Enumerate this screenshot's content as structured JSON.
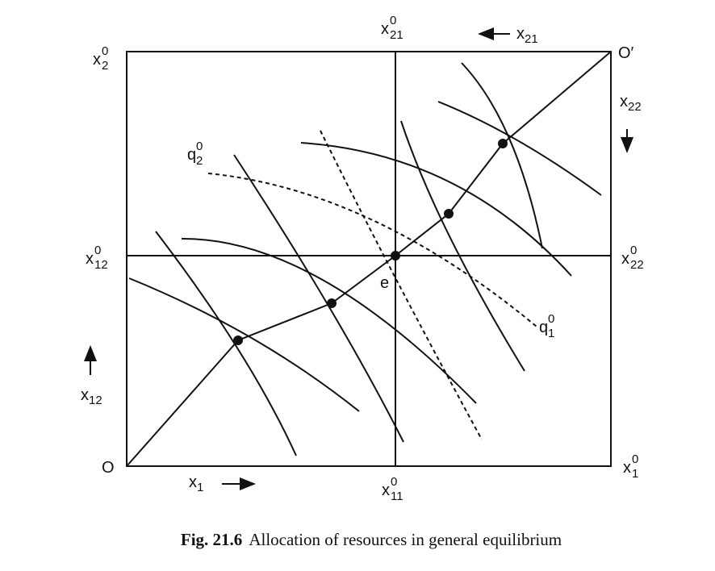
{
  "labels": {
    "x2_0": {
      "base": "x",
      "sub": "2",
      "sup": "0"
    },
    "x21_0": {
      "base": "x",
      "sub": "21",
      "sup": "0"
    },
    "x21": {
      "base": "x",
      "sub": "21"
    },
    "o_prime": "O′",
    "x22": {
      "base": "x",
      "sub": "22"
    },
    "x12_0": {
      "base": "x",
      "sub": "12",
      "sup": "0"
    },
    "x22_0": {
      "base": "x",
      "sub": "22",
      "sup": "0"
    },
    "x12": {
      "base": "x",
      "sub": "12"
    },
    "origin": "O",
    "x1": {
      "base": "x",
      "sub": "1"
    },
    "x11_0": {
      "base": "x",
      "sub": "11",
      "sup": "0"
    },
    "x1_0": {
      "base": "x",
      "sub": "1",
      "sup": "0"
    },
    "q2_0": {
      "base": "q",
      "sub": "2",
      "sup": "0"
    },
    "q1_0": {
      "base": "q",
      "sub": "1",
      "sup": "0"
    },
    "e": "e"
  },
  "caption": {
    "number": "Fig. 21.6",
    "text": "Allocation of resources in general equilibrium"
  }
}
